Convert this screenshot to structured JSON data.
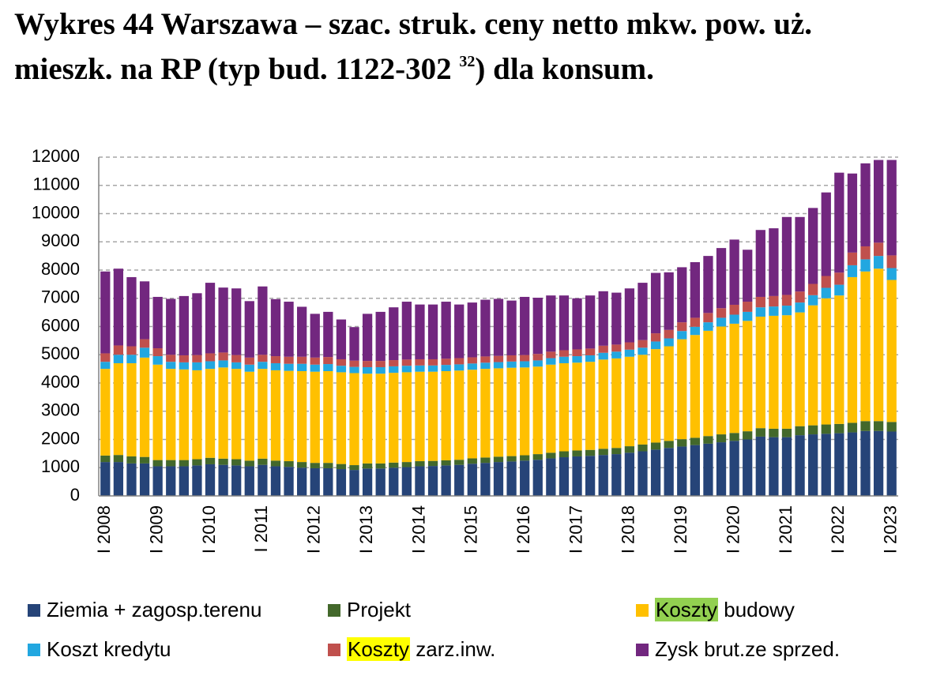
{
  "chart_data": {
    "type": "stacked_bar",
    "title": "Wykres 44 Warszawa – szac. struk. ceny netto mkw. pow. uż. mieszk. na RP (typ bud. 1122-302",
    "title_sup": "32",
    "title_end": ") dla konsum.",
    "categories": [
      "I 2008",
      null,
      null,
      null,
      "I 2009",
      null,
      null,
      null,
      "I 2010",
      null,
      null,
      null,
      "I 2011",
      null,
      null,
      null,
      "I 2012",
      null,
      null,
      null,
      "I 2013",
      null,
      null,
      null,
      "I 2014",
      null,
      null,
      null,
      "I 2015",
      null,
      null,
      null,
      "I 2016",
      null,
      null,
      null,
      "I 2017",
      null,
      null,
      null,
      "I 2018",
      null,
      null,
      null,
      "I 2019",
      null,
      null,
      null,
      "I 2020",
      null,
      null,
      null,
      "I 2021",
      null,
      null,
      null,
      "I 2022",
      null,
      null,
      null,
      "I 2023"
    ],
    "series": [
      {
        "name": "Ziemia + zagosp.terenu",
        "color": "#264478",
        "values": [
          1200,
          1200,
          1150,
          1150,
          1050,
          1050,
          1050,
          1080,
          1120,
          1100,
          1080,
          1050,
          1100,
          1050,
          1030,
          1000,
          980,
          980,
          950,
          920,
          970,
          970,
          1000,
          1020,
          1050,
          1060,
          1080,
          1100,
          1140,
          1170,
          1200,
          1220,
          1250,
          1280,
          1330,
          1370,
          1400,
          1420,
          1450,
          1480,
          1530,
          1580,
          1640,
          1700,
          1750,
          1800,
          1850,
          1900,
          1950,
          2000,
          2100,
          2080,
          2080,
          2150,
          2180,
          2200,
          2220,
          2250,
          2300,
          2300,
          2280
        ]
      },
      {
        "name": "Projekt",
        "color": "#43682b",
        "values": [
          230,
          250,
          250,
          230,
          220,
          220,
          220,
          220,
          230,
          220,
          220,
          200,
          220,
          200,
          200,
          200,
          190,
          190,
          180,
          170,
          180,
          180,
          180,
          180,
          180,
          180,
          180,
          180,
          190,
          190,
          190,
          190,
          190,
          200,
          200,
          210,
          210,
          210,
          220,
          220,
          230,
          240,
          250,
          250,
          260,
          260,
          270,
          280,
          280,
          290,
          300,
          300,
          300,
          320,
          320,
          330,
          330,
          340,
          350,
          350,
          340
        ]
      },
      {
        "name": "Koszty budowy",
        "color": "#ffc000",
        "highlight_color": "#92d050",
        "values": [
          3070,
          3250,
          3300,
          3520,
          3380,
          3230,
          3210,
          3150,
          3150,
          3230,
          3200,
          3150,
          3180,
          3200,
          3200,
          3220,
          3230,
          3250,
          3250,
          3260,
          3180,
          3180,
          3180,
          3180,
          3170,
          3160,
          3160,
          3160,
          3140,
          3140,
          3130,
          3130,
          3110,
          3100,
          3120,
          3120,
          3110,
          3120,
          3160,
          3170,
          3170,
          3180,
          3310,
          3350,
          3540,
          3640,
          3730,
          3820,
          3870,
          3910,
          3950,
          4000,
          4020,
          4030,
          4250,
          4470,
          4550,
          5160,
          5300,
          5400,
          5030
        ]
      },
      {
        "name": "Koszt kredytu",
        "color": "#22a7e0",
        "values": [
          250,
          300,
          300,
          350,
          300,
          250,
          250,
          280,
          270,
          250,
          230,
          250,
          250,
          250,
          250,
          260,
          250,
          250,
          230,
          220,
          230,
          230,
          230,
          230,
          220,
          220,
          220,
          220,
          220,
          220,
          220,
          220,
          220,
          220,
          230,
          230,
          230,
          230,
          240,
          240,
          250,
          250,
          270,
          280,
          290,
          290,
          300,
          310,
          320,
          320,
          330,
          330,
          340,
          350,
          360,
          370,
          380,
          420,
          430,
          450,
          420
        ]
      },
      {
        "name": "Koszty zarz.inw.",
        "color": "#c0504d",
        "highlight_color": "#ffff00",
        "values": [
          300,
          330,
          300,
          300,
          280,
          250,
          250,
          260,
          280,
          280,
          260,
          250,
          250,
          250,
          250,
          250,
          250,
          250,
          230,
          220,
          220,
          220,
          220,
          220,
          220,
          220,
          220,
          220,
          220,
          220,
          220,
          220,
          220,
          230,
          230,
          230,
          240,
          240,
          250,
          250,
          260,
          270,
          290,
          300,
          310,
          320,
          330,
          340,
          350,
          360,
          370,
          370,
          380,
          390,
          400,
          420,
          430,
          450,
          460,
          470,
          450
        ]
      },
      {
        "name": "Zysk brut.ze sprzed.",
        "color": "#72277f",
        "values": [
          2900,
          2720,
          2450,
          2050,
          1820,
          1980,
          2100,
          2190,
          2500,
          2300,
          2360,
          2000,
          2420,
          2020,
          1950,
          1770,
          1550,
          1600,
          1410,
          1190,
          1670,
          1740,
          1870,
          2050,
          1940,
          1940,
          2020,
          1900,
          1940,
          2010,
          2020,
          1940,
          2060,
          1990,
          1990,
          1940,
          1810,
          1880,
          1930,
          1840,
          1910,
          2030,
          2140,
          2040,
          1950,
          1970,
          2020,
          2130,
          2310,
          1840,
          2370,
          2400,
          2760,
          2640,
          2690,
          2960,
          3540,
          2800,
          2940,
          2930,
          3380
        ]
      }
    ],
    "ylim": [
      0,
      12000
    ],
    "yticks": [
      0,
      1000,
      2000,
      3000,
      4000,
      5000,
      6000,
      7000,
      8000,
      9000,
      10000,
      11000,
      12000
    ],
    "grid": true
  }
}
